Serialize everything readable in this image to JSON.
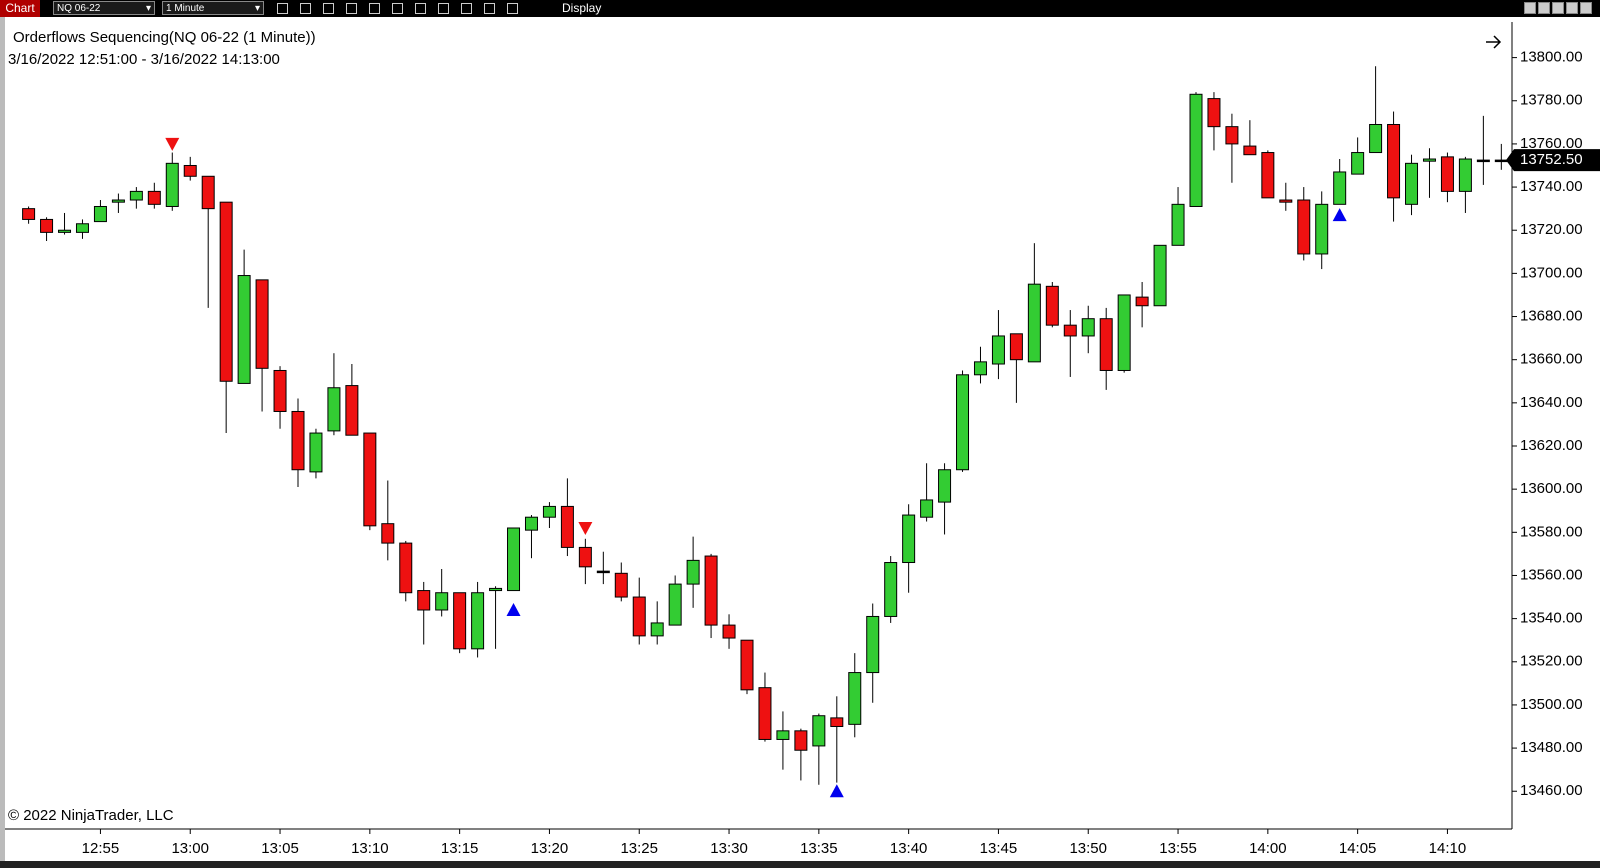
{
  "toolbar": {
    "tab": "Chart",
    "instrument": "NQ 06-22",
    "interval": "1 Minute",
    "menu": "Display"
  },
  "chart_data": {
    "type": "candlestick",
    "title": "Orderflows Sequencing(NQ 06-22 (1 Minute))",
    "subtitle": "3/16/2022 12:51:00 - 3/16/2022 14:13:00",
    "footer": "© 2022 NinjaTrader, LLC",
    "up_color": "#33cc33",
    "down_color": "#ee1111",
    "buy_color": "#0000ee",
    "sell_color": "#ee1111",
    "categories": [
      null,
      null,
      null,
      null,
      "12:55",
      null,
      null,
      null,
      null,
      "13:00",
      null,
      null,
      null,
      null,
      "13:05",
      null,
      null,
      null,
      null,
      "13:10",
      null,
      null,
      null,
      null,
      "13:15",
      null,
      null,
      null,
      null,
      "13:20",
      null,
      null,
      null,
      null,
      "13:25",
      null,
      null,
      null,
      null,
      "13:30",
      null,
      null,
      null,
      null,
      "13:35",
      null,
      null,
      null,
      null,
      "13:40",
      null,
      null,
      null,
      null,
      "13:45",
      null,
      null,
      null,
      null,
      "13:50",
      null,
      null,
      null,
      null,
      "13:55",
      null,
      null,
      null,
      null,
      "14:00",
      null,
      null,
      null,
      null,
      "14:05",
      null,
      null,
      null,
      null,
      "14:10",
      null,
      null,
      null
    ],
    "open": [
      13730,
      13725,
      13719,
      13719,
      13724,
      13733,
      13734,
      13738,
      13731,
      13750,
      13745,
      13733,
      13649,
      13697,
      13655,
      13636,
      13608,
      13627,
      13648,
      13626,
      13584,
      13575,
      13553,
      13544,
      13552,
      13526,
      13553,
      13553,
      13581,
      13587,
      13592,
      13573,
      13562,
      13561,
      13550,
      13532,
      13537,
      13556,
      13569,
      13537,
      13530,
      13508,
      13484,
      13488,
      13481,
      13494,
      13491,
      13515,
      13541,
      13566,
      13587,
      13594,
      13609,
      13653,
      13658,
      13672,
      13659,
      13694,
      13676,
      13671,
      13679,
      13655,
      13689,
      13685,
      13713,
      13731,
      13781,
      13768,
      13759,
      13756,
      13734,
      13734,
      13709,
      13732,
      13746,
      13756,
      13769,
      13732,
      13752,
      13754,
      13738,
      13752.5,
      13752.5
    ],
    "high": [
      13731,
      13726,
      13728,
      13725,
      13734,
      13737,
      13740,
      13742,
      13756,
      13754,
      13745,
      13733,
      13711,
      13697,
      13657,
      13642,
      13628,
      13663,
      13658,
      13626,
      13604,
      13576,
      13557,
      13563,
      13552,
      13557,
      13555,
      13582,
      13588,
      13594,
      13605,
      13577,
      13571,
      13566,
      13559,
      13548,
      13560,
      13578,
      13570,
      13542,
      13530,
      13515,
      13497,
      13489,
      13496,
      13504,
      13524,
      13547,
      13569,
      13593,
      13612,
      13612,
      13655,
      13666,
      13683,
      13672,
      13714,
      13696,
      13683,
      13685,
      13684,
      13690,
      13696,
      13713,
      13740,
      13784,
      13784,
      13774,
      13771,
      13757,
      13742,
      13740,
      13738,
      13753,
      13763,
      13796,
      13775,
      13755,
      13758,
      13756,
      13754,
      13773,
      13760
    ],
    "low": [
      13723,
      13715,
      13718,
      13716,
      13724,
      13728,
      13730,
      13730,
      13729,
      13743,
      13684,
      13626,
      13649,
      13636,
      13628,
      13601,
      13605,
      13625,
      13625,
      13581,
      13567,
      13548,
      13528,
      13541,
      13524,
      13522,
      13526,
      13553,
      13568,
      13582,
      13569,
      13556,
      13556,
      13548,
      13528,
      13528,
      13537,
      13545,
      13531,
      13526,
      13505,
      13483,
      13470,
      13465,
      13463,
      13464,
      13485,
      13501,
      13538,
      13552,
      13585,
      13579,
      13608,
      13649,
      13651,
      13640,
      13659,
      13675,
      13652,
      13663,
      13646,
      13654,
      13675,
      13685,
      13713,
      13731,
      13757,
      13742,
      13755,
      13735,
      13729,
      13706,
      13702,
      13732,
      13746,
      13756,
      13724,
      13727,
      13735,
      13733,
      13728,
      13741,
      13748
    ],
    "close": [
      13725,
      13719,
      13720,
      13723,
      13731,
      13734,
      13738,
      13732,
      13751,
      13745,
      13730,
      13650,
      13699,
      13656,
      13636,
      13609,
      13626,
      13647,
      13625,
      13583,
      13575,
      13552,
      13544,
      13552,
      13526,
      13552,
      13554,
      13582,
      13587,
      13592,
      13573,
      13564,
      13562,
      13550,
      13532,
      13538,
      13556,
      13567,
      13537,
      13531,
      13507,
      13484,
      13488,
      13479,
      13495,
      13490,
      13515,
      13541,
      13566,
      13588,
      13595,
      13609,
      13653,
      13659,
      13671,
      13660,
      13695,
      13676,
      13671,
      13679,
      13655,
      13690,
      13685,
      13713,
      13732,
      13783,
      13768,
      13760,
      13755,
      13735,
      13733,
      13709,
      13732,
      13747,
      13756,
      13769,
      13735,
      13751,
      13753,
      13738,
      13753,
      13752.5,
      13752.5
    ],
    "sell_signals": [
      null,
      null,
      null,
      null,
      null,
      null,
      null,
      null,
      13760,
      null,
      null,
      null,
      null,
      null,
      null,
      null,
      null,
      null,
      null,
      null,
      null,
      null,
      null,
      null,
      null,
      null,
      null,
      null,
      null,
      null,
      null,
      13582,
      null,
      null,
      null,
      null,
      null,
      null,
      null,
      null,
      null,
      null,
      null,
      null,
      null,
      null,
      null,
      null,
      null,
      null,
      null,
      null,
      null,
      null,
      null,
      null,
      null,
      null,
      null,
      null,
      null,
      null,
      null,
      null,
      null,
      null,
      null,
      null,
      null,
      null,
      null,
      null,
      null,
      null,
      null,
      null,
      null,
      null,
      null,
      null,
      null,
      null,
      null
    ],
    "buy_signals": [
      null,
      null,
      null,
      null,
      null,
      null,
      null,
      null,
      null,
      null,
      null,
      null,
      null,
      null,
      null,
      null,
      null,
      null,
      null,
      null,
      null,
      null,
      null,
      null,
      null,
      null,
      null,
      13544,
      null,
      null,
      null,
      null,
      null,
      null,
      null,
      null,
      null,
      null,
      null,
      null,
      null,
      null,
      null,
      null,
      null,
      13460,
      null,
      null,
      null,
      null,
      null,
      null,
      null,
      null,
      null,
      null,
      null,
      null,
      null,
      null,
      null,
      null,
      null,
      null,
      null,
      null,
      null,
      null,
      null,
      null,
      null,
      null,
      null,
      13727,
      null,
      null,
      null,
      null,
      null,
      null,
      null,
      null,
      null
    ],
    "last_price": {
      "value": 13752.5,
      "label": "13752.50"
    },
    "ylim": [
      13442.5,
      13816.5
    ],
    "yticks": [
      {
        "value": 13460,
        "label": "13460.00"
      },
      {
        "value": 13480,
        "label": "13480.00"
      },
      {
        "value": 13500,
        "label": "13500.00"
      },
      {
        "value": 13520,
        "label": "13520.00"
      },
      {
        "value": 13540,
        "label": "13540.00"
      },
      {
        "value": 13560,
        "label": "13560.00"
      },
      {
        "value": 13580,
        "label": "13580.00"
      },
      {
        "value": 13600,
        "label": "13600.00"
      },
      {
        "value": 13620,
        "label": "13620.00"
      },
      {
        "value": 13640,
        "label": "13640.00"
      },
      {
        "value": 13660,
        "label": "13660.00"
      },
      {
        "value": 13680,
        "label": "13680.00"
      },
      {
        "value": 13700,
        "label": "13700.00"
      },
      {
        "value": 13720,
        "label": "13720.00"
      },
      {
        "value": 13740,
        "label": "13740.00"
      },
      {
        "value": 13760,
        "label": "13760.00"
      },
      {
        "value": 13780,
        "label": "13780.00"
      },
      {
        "value": 13800,
        "label": "13800.00"
      }
    ]
  }
}
